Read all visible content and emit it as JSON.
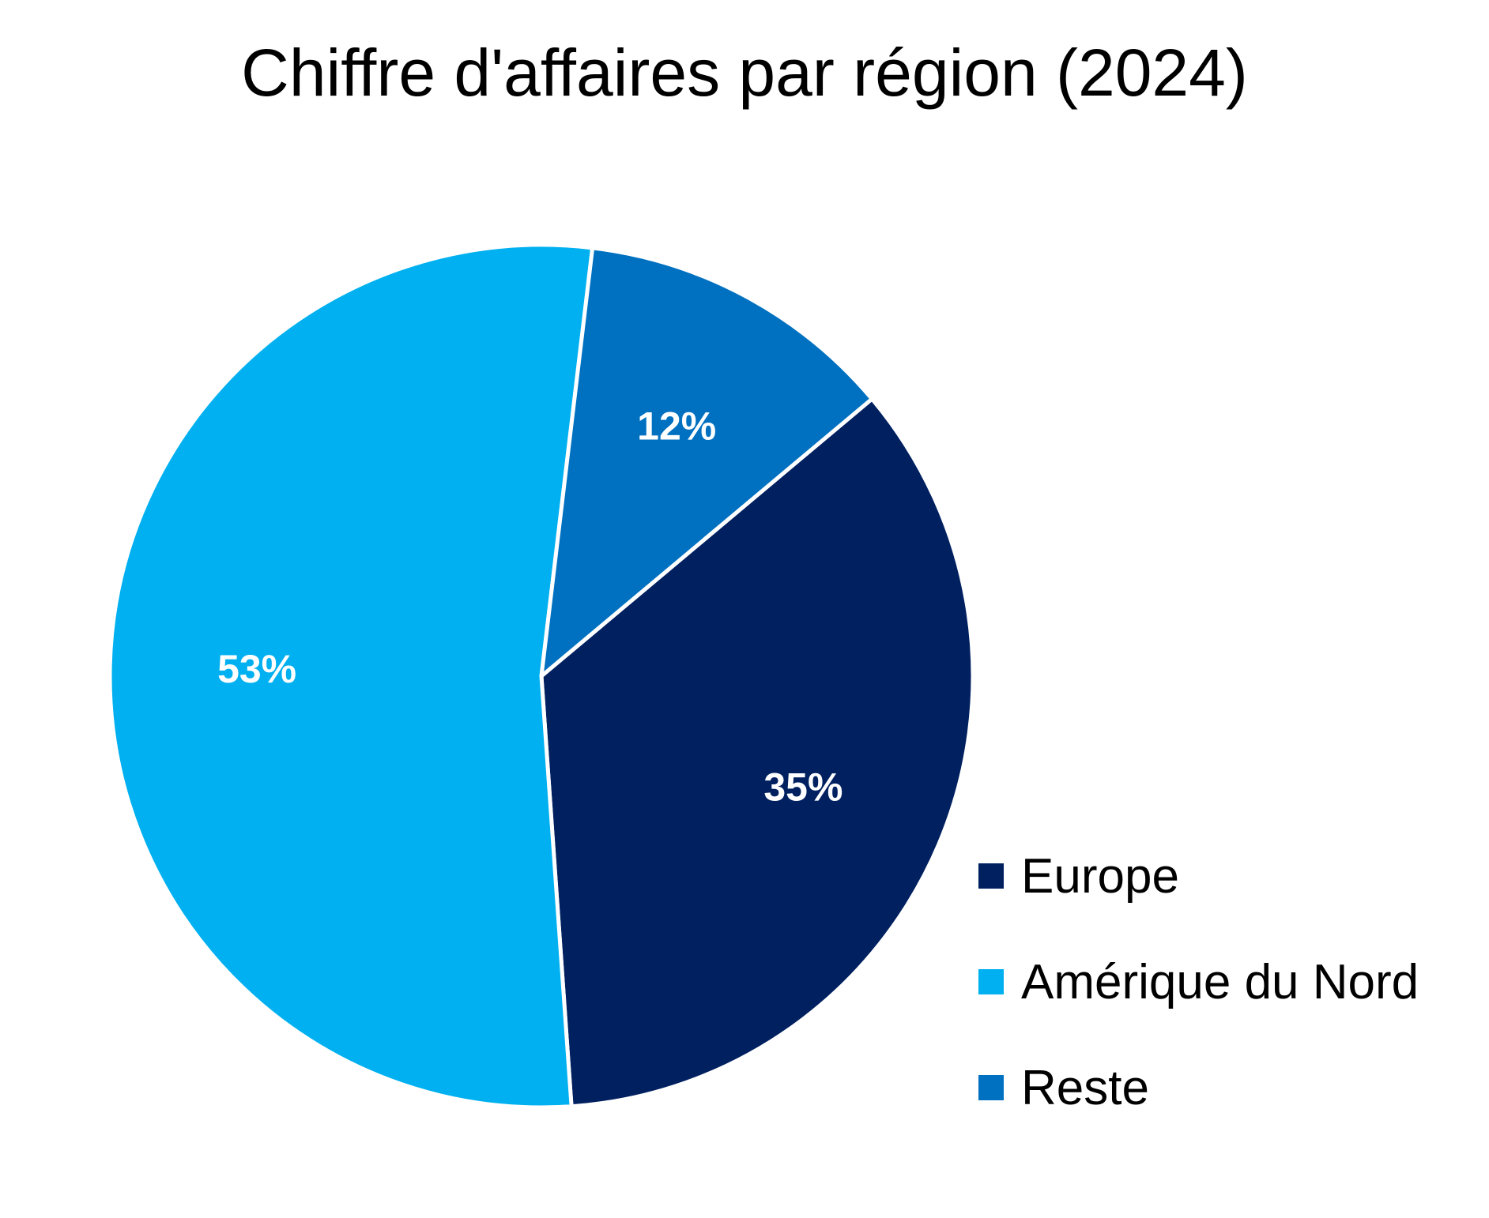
{
  "chart_data": {
    "type": "pie",
    "title": "Chiffre d'affaires par région (2024)",
    "slices": [
      {
        "name": "Europe",
        "value": 35,
        "label": "35%",
        "color": "#002060"
      },
      {
        "name": "Amérique du Nord",
        "value": 53,
        "label": "53%",
        "color": "#00B0F0"
      },
      {
        "name": "Reste",
        "value": 12,
        "label": "12%",
        "color": "#0070C0"
      }
    ],
    "legend_position": "right"
  }
}
